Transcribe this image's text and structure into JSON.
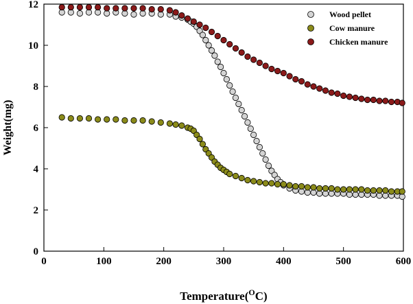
{
  "chart_data": {
    "type": "scatter",
    "title": "",
    "xlabel": "Temperature(",
    "xlabel_sup": "O",
    "xlabel_tail": "C)",
    "ylabel": "Weight(mg)",
    "xlim": [
      0,
      600
    ],
    "ylim": [
      0,
      12
    ],
    "xticks": [
      "0",
      "100",
      "200",
      "300",
      "400",
      "500",
      "600"
    ],
    "yticks": [
      "0",
      "2",
      "4",
      "6",
      "8",
      "10",
      "12"
    ],
    "grid": false,
    "legend_position": "top-right",
    "series": [
      {
        "name": "Wood pellet",
        "color": "#d4d4d4",
        "x": [
          30,
          45,
          60,
          75,
          90,
          105,
          120,
          135,
          150,
          165,
          180,
          195,
          210,
          220,
          230,
          240,
          245,
          250,
          255,
          260,
          265,
          270,
          275,
          280,
          285,
          290,
          295,
          300,
          305,
          310,
          315,
          320,
          325,
          330,
          335,
          340,
          345,
          350,
          355,
          360,
          365,
          370,
          375,
          380,
          385,
          390,
          395,
          400,
          410,
          420,
          430,
          440,
          450,
          460,
          470,
          480,
          490,
          500,
          510,
          520,
          530,
          540,
          550,
          560,
          570,
          580,
          590,
          598
        ],
        "y": [
          11.6,
          11.6,
          11.55,
          11.6,
          11.6,
          11.55,
          11.6,
          11.55,
          11.5,
          11.55,
          11.55,
          11.5,
          11.5,
          11.4,
          11.35,
          11.25,
          11.15,
          11.05,
          10.9,
          10.7,
          10.5,
          10.25,
          10.0,
          9.75,
          9.5,
          9.2,
          8.95,
          8.65,
          8.35,
          8.05,
          7.75,
          7.45,
          7.15,
          6.85,
          6.55,
          6.25,
          5.95,
          5.65,
          5.35,
          5.05,
          4.75,
          4.45,
          4.15,
          3.9,
          3.7,
          3.5,
          3.35,
          3.2,
          3.05,
          2.95,
          2.9,
          2.85,
          2.85,
          2.8,
          2.8,
          2.8,
          2.8,
          2.8,
          2.75,
          2.75,
          2.75,
          2.75,
          2.75,
          2.7,
          2.7,
          2.7,
          2.7,
          2.65
        ]
      },
      {
        "name": "Cow manure",
        "color": "#8b8b1a",
        "x": [
          30,
          45,
          60,
          75,
          90,
          105,
          120,
          135,
          150,
          165,
          180,
          195,
          210,
          220,
          230,
          240,
          245,
          250,
          255,
          260,
          265,
          270,
          275,
          280,
          285,
          290,
          295,
          300,
          305,
          310,
          320,
          330,
          340,
          350,
          360,
          370,
          380,
          390,
          400,
          410,
          420,
          430,
          440,
          450,
          460,
          470,
          480,
          490,
          500,
          510,
          520,
          530,
          540,
          550,
          560,
          570,
          580,
          590,
          598
        ],
        "y": [
          6.5,
          6.45,
          6.45,
          6.45,
          6.4,
          6.4,
          6.4,
          6.35,
          6.35,
          6.35,
          6.3,
          6.25,
          6.2,
          6.15,
          6.1,
          6.0,
          5.95,
          5.85,
          5.65,
          5.45,
          5.2,
          4.95,
          4.75,
          4.55,
          4.35,
          4.2,
          4.05,
          3.95,
          3.85,
          3.75,
          3.65,
          3.55,
          3.45,
          3.4,
          3.35,
          3.3,
          3.3,
          3.25,
          3.25,
          3.2,
          3.15,
          3.15,
          3.1,
          3.1,
          3.05,
          3.05,
          3.05,
          3.0,
          3.0,
          3.0,
          3.0,
          3.0,
          2.95,
          2.95,
          2.95,
          2.95,
          2.9,
          2.9,
          2.9
        ]
      },
      {
        "name": "Chicken manure",
        "color": "#8b1a1a",
        "x": [
          30,
          45,
          60,
          75,
          90,
          105,
          120,
          135,
          150,
          165,
          180,
          195,
          210,
          220,
          230,
          240,
          250,
          260,
          270,
          280,
          290,
          300,
          310,
          320,
          330,
          340,
          350,
          360,
          370,
          380,
          390,
          400,
          410,
          420,
          430,
          440,
          450,
          460,
          470,
          480,
          490,
          500,
          510,
          520,
          530,
          540,
          550,
          560,
          570,
          580,
          590,
          598
        ],
        "y": [
          11.85,
          11.85,
          11.85,
          11.85,
          11.85,
          11.8,
          11.8,
          11.8,
          11.8,
          11.8,
          11.75,
          11.75,
          11.7,
          11.6,
          11.45,
          11.3,
          11.15,
          11.0,
          10.85,
          10.65,
          10.45,
          10.25,
          10.05,
          9.85,
          9.65,
          9.45,
          9.3,
          9.15,
          9.0,
          8.85,
          8.75,
          8.65,
          8.5,
          8.35,
          8.25,
          8.1,
          8.0,
          7.9,
          7.8,
          7.7,
          7.65,
          7.55,
          7.5,
          7.45,
          7.4,
          7.35,
          7.35,
          7.3,
          7.3,
          7.25,
          7.25,
          7.2
        ]
      }
    ]
  }
}
